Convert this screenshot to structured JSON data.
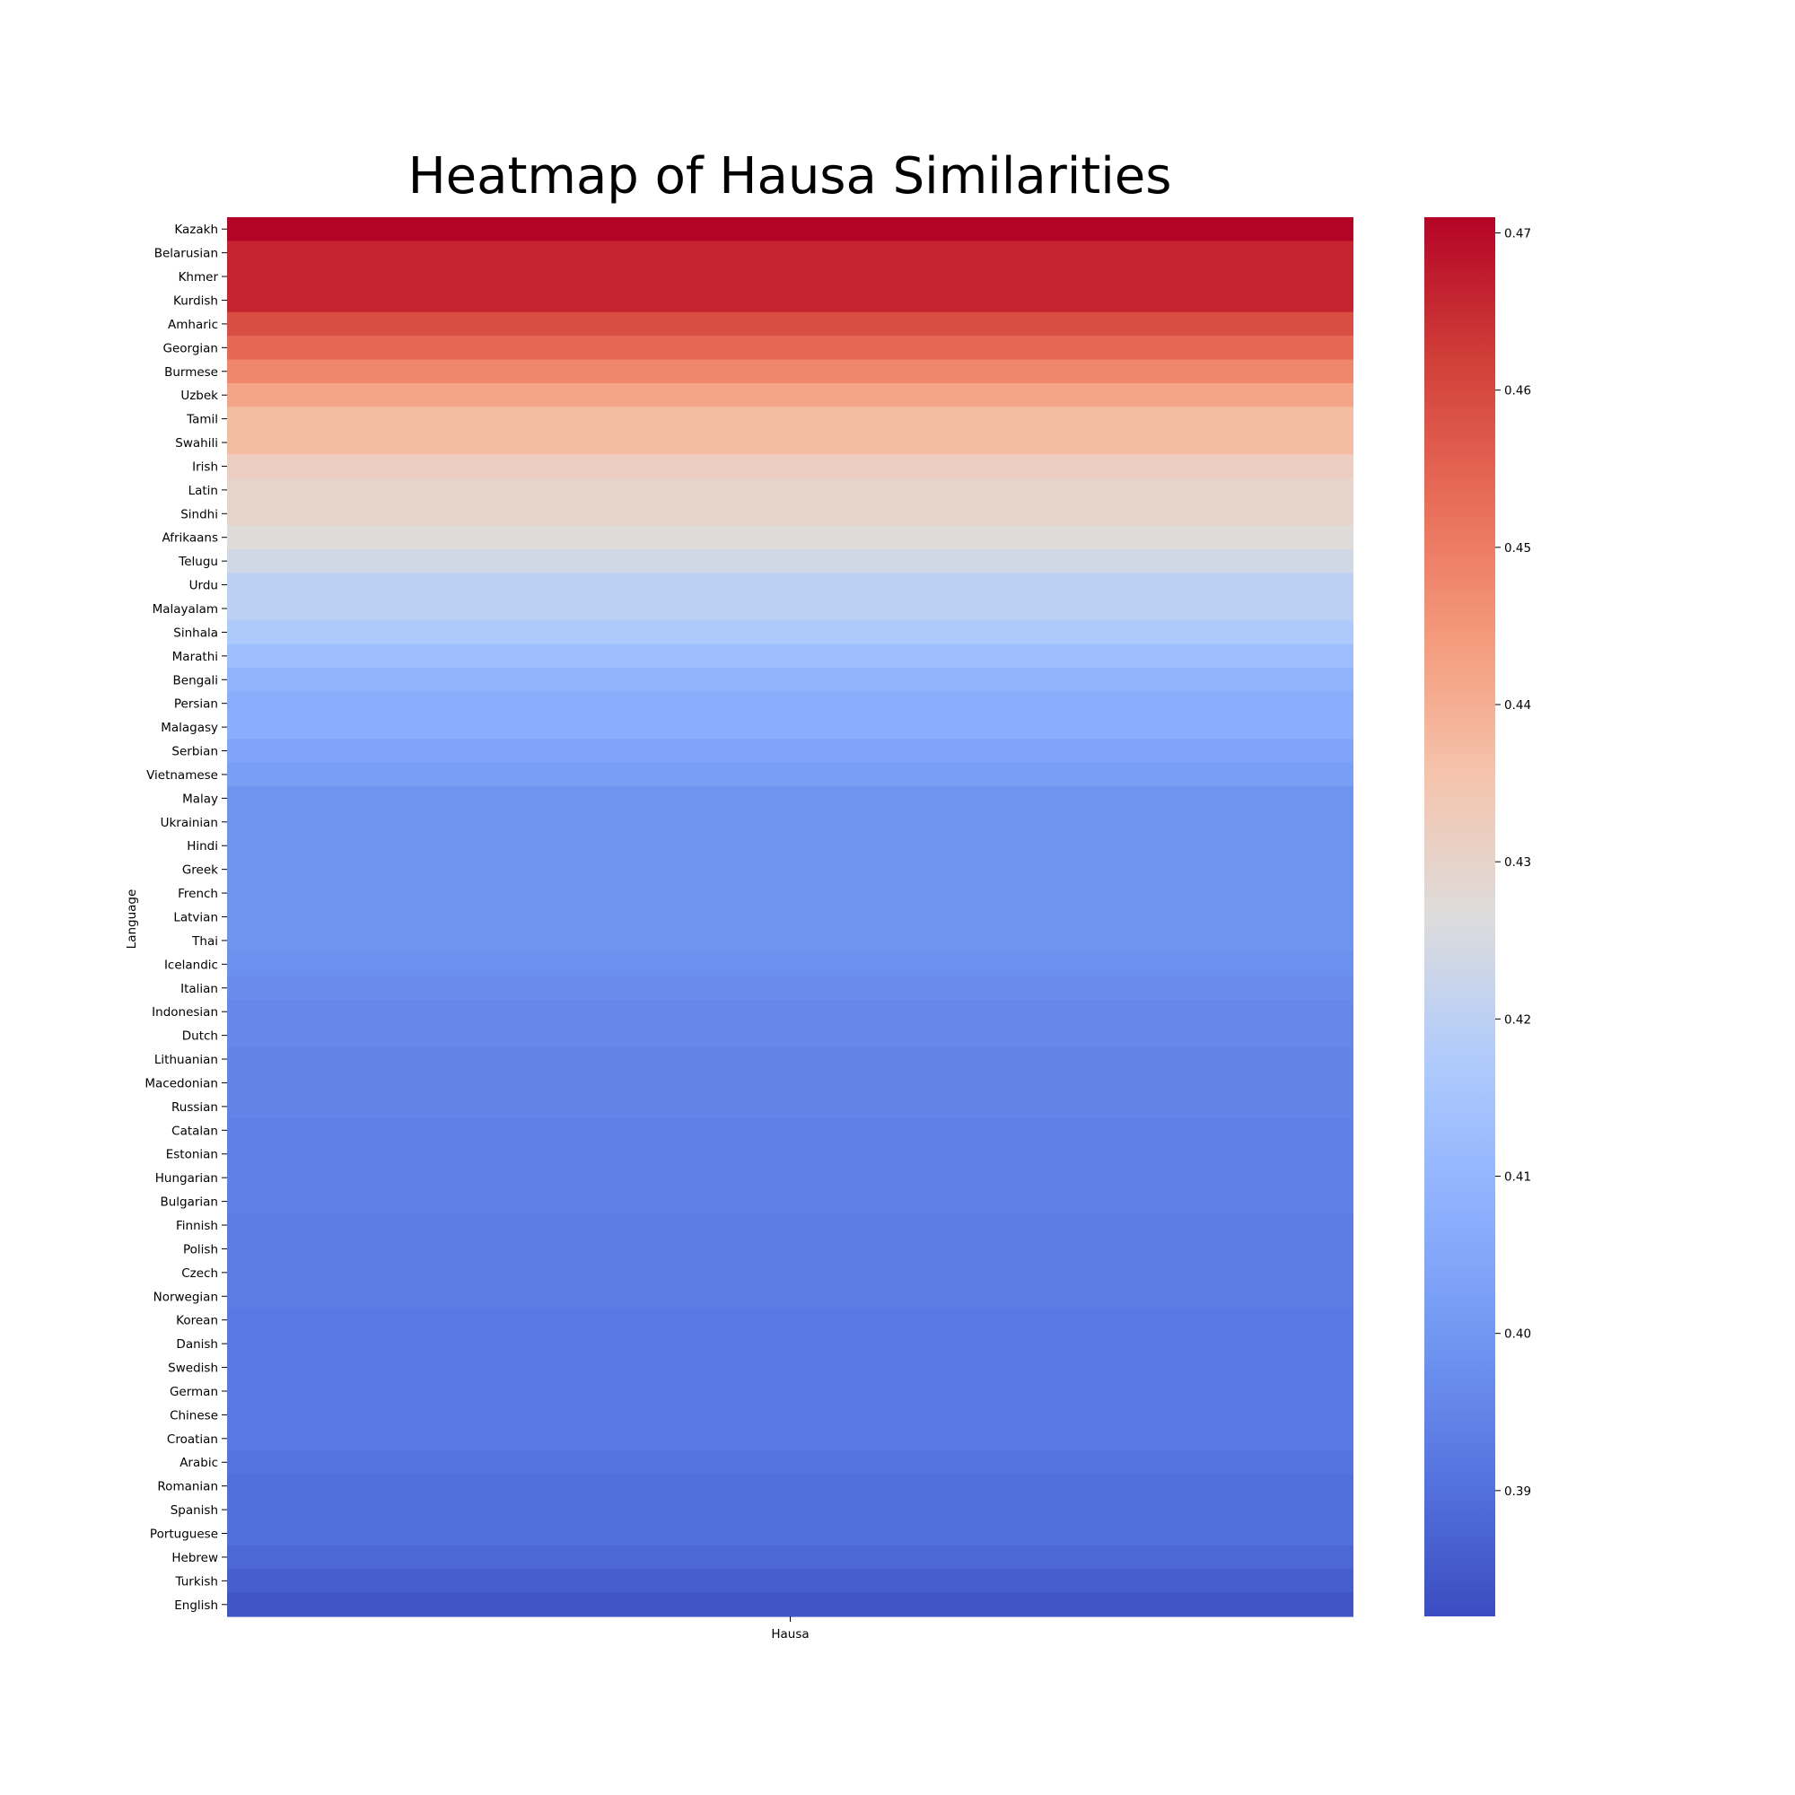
{
  "chart_data": {
    "type": "heatmap",
    "title": "Heatmap of Hausa Similarities",
    "xlabel": "",
    "ylabel": "Language",
    "columns": [
      "Hausa"
    ],
    "rows": [
      "Kazakh",
      "Belarusian",
      "Khmer",
      "Kurdish",
      "Amharic",
      "Georgian",
      "Burmese",
      "Uzbek",
      "Tamil",
      "Swahili",
      "Irish",
      "Latin",
      "Sindhi",
      "Afrikaans",
      "Telugu",
      "Urdu",
      "Malayalam",
      "Sinhala",
      "Marathi",
      "Bengali",
      "Persian",
      "Malagasy",
      "Serbian",
      "Vietnamese",
      "Malay",
      "Ukrainian",
      "Hindi",
      "Greek",
      "French",
      "Latvian",
      "Thai",
      "Icelandic",
      "Italian",
      "Indonesian",
      "Dutch",
      "Lithuanian",
      "Macedonian",
      "Russian",
      "Catalan",
      "Estonian",
      "Hungarian",
      "Bulgarian",
      "Finnish",
      "Polish",
      "Czech",
      "Norwegian",
      "Korean",
      "Danish",
      "Swedish",
      "German",
      "Chinese",
      "Croatian",
      "Arabic",
      "Romanian",
      "Spanish",
      "Portuguese",
      "Hebrew",
      "Turkish",
      "English"
    ],
    "values": [
      0.471,
      0.466,
      0.466,
      0.466,
      0.459,
      0.454,
      0.448,
      0.442,
      0.437,
      0.437,
      0.432,
      0.43,
      0.43,
      0.427,
      0.424,
      0.42,
      0.42,
      0.417,
      0.413,
      0.409,
      0.407,
      0.407,
      0.404,
      0.402,
      0.399,
      0.399,
      0.399,
      0.399,
      0.399,
      0.399,
      0.399,
      0.398,
      0.397,
      0.396,
      0.396,
      0.395,
      0.395,
      0.395,
      0.394,
      0.394,
      0.394,
      0.394,
      0.393,
      0.393,
      0.393,
      0.393,
      0.392,
      0.392,
      0.392,
      0.392,
      0.392,
      0.392,
      0.391,
      0.39,
      0.39,
      0.39,
      0.388,
      0.386,
      0.384
    ],
    "colorbar": {
      "cmap": "coolwarm",
      "vmin": 0.382,
      "vmax": 0.471,
      "ticks": [
        0.39,
        0.4,
        0.41,
        0.42,
        0.43,
        0.44,
        0.45,
        0.46,
        0.47
      ],
      "tick_labels": [
        "0.39",
        "0.40",
        "0.41",
        "0.42",
        "0.43",
        "0.44",
        "0.45",
        "0.46",
        "0.47"
      ]
    }
  }
}
